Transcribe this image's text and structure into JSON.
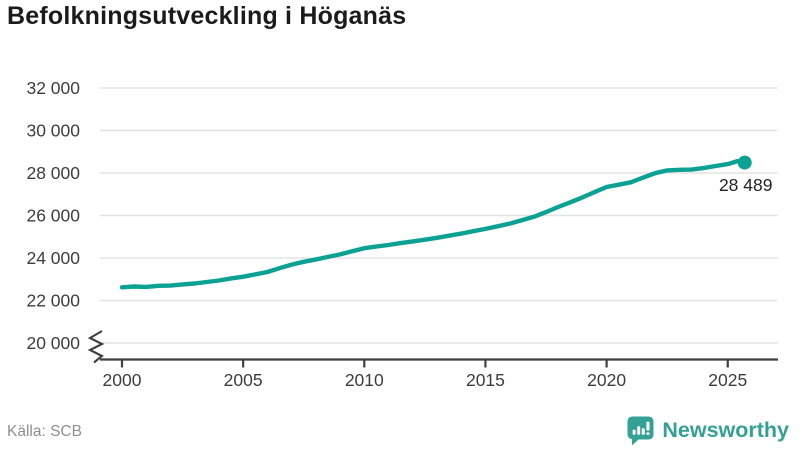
{
  "title": "Befolkningsutveckling i Höganäs",
  "source_note": "Källa: SCB",
  "branding": {
    "name": "Newsworthy",
    "icon": "newsworthy-bubble-barchart-icon"
  },
  "colors": {
    "line": "#0ba294",
    "point": "#0ba294",
    "brand": "#33a193",
    "grid": "#e3e3e3",
    "axis": "#3f3f3f",
    "title_text": "#1b1b1b",
    "tick_text": "#3d3d3d",
    "source_text": "#8f8f8f",
    "end_label_text": "#232323"
  },
  "chart_data": {
    "type": "line",
    "title": "Befolkningsutveckling i Höganäs",
    "xlabel": "",
    "ylabel": "",
    "grid": "horizontal",
    "legend": "none",
    "axis_break_at_bottom": true,
    "xlim": [
      1999.1,
      2027.1
    ],
    "ylim": [
      20000,
      32800
    ],
    "x_ticks": [
      2000,
      2005,
      2010,
      2015,
      2020,
      2025
    ],
    "y_ticks": [
      {
        "value": 32000,
        "label": "32 000"
      },
      {
        "value": 30000,
        "label": "30 000"
      },
      {
        "value": 28000,
        "label": "28 000"
      },
      {
        "value": 26000,
        "label": "26 000"
      },
      {
        "value": 24000,
        "label": "24 000"
      },
      {
        "value": 22000,
        "label": "22 000"
      },
      {
        "value": 20000,
        "label": "20 000"
      }
    ],
    "series": [
      {
        "name": "Befolkning",
        "color": "#0ba294",
        "points": [
          [
            2000,
            22620
          ],
          [
            2000.5,
            22660
          ],
          [
            2001,
            22640
          ],
          [
            2001.5,
            22690
          ],
          [
            2002,
            22700
          ],
          [
            2002.5,
            22760
          ],
          [
            2003,
            22800
          ],
          [
            2003.5,
            22870
          ],
          [
            2004,
            22940
          ],
          [
            2004.5,
            23040
          ],
          [
            2005,
            23120
          ],
          [
            2005.5,
            23230
          ],
          [
            2006,
            23340
          ],
          [
            2006.5,
            23520
          ],
          [
            2007,
            23690
          ],
          [
            2007.5,
            23820
          ],
          [
            2008,
            23930
          ],
          [
            2008.5,
            24050
          ],
          [
            2009,
            24170
          ],
          [
            2009.5,
            24320
          ],
          [
            2010,
            24460
          ],
          [
            2010.5,
            24540
          ],
          [
            2011,
            24610
          ],
          [
            2011.5,
            24700
          ],
          [
            2012,
            24780
          ],
          [
            2012.5,
            24860
          ],
          [
            2013,
            24950
          ],
          [
            2013.5,
            25050
          ],
          [
            2014,
            25150
          ],
          [
            2014.5,
            25260
          ],
          [
            2015,
            25370
          ],
          [
            2015.5,
            25490
          ],
          [
            2016,
            25620
          ],
          [
            2016.5,
            25780
          ],
          [
            2017,
            25940
          ],
          [
            2017.5,
            26160
          ],
          [
            2018,
            26400
          ],
          [
            2018.5,
            26620
          ],
          [
            2019,
            26850
          ],
          [
            2019.5,
            27100
          ],
          [
            2020,
            27340
          ],
          [
            2020.5,
            27450
          ],
          [
            2021,
            27560
          ],
          [
            2021.5,
            27780
          ],
          [
            2022,
            27990
          ],
          [
            2022.5,
            28120
          ],
          [
            2023,
            28150
          ],
          [
            2023.5,
            28160
          ],
          [
            2024,
            28230
          ],
          [
            2024.5,
            28330
          ],
          [
            2025,
            28420
          ],
          [
            2025.4,
            28560
          ],
          [
            2025.7,
            28489
          ]
        ]
      }
    ],
    "last_point": {
      "x": 2025.7,
      "value": 28489,
      "label": "28 489"
    }
  }
}
